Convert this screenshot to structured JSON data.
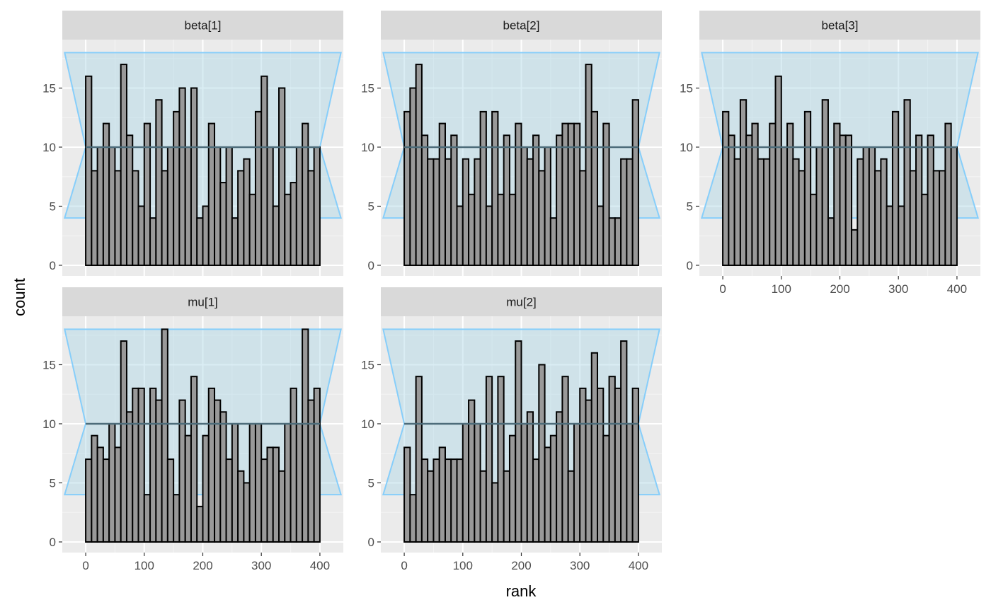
{
  "chart_data": {
    "type": "bar",
    "subtype": "rank-histogram",
    "xlabel": "rank",
    "ylabel": "count",
    "xlim": [
      -40,
      440
    ],
    "ylim": [
      0,
      18
    ],
    "x_ticks": [
      0,
      100,
      200,
      300,
      400
    ],
    "y_ticks": [
      0,
      5,
      10,
      15
    ],
    "bin_width": 10,
    "bin_starts": [
      0,
      10,
      20,
      30,
      40,
      50,
      60,
      70,
      80,
      90,
      100,
      110,
      120,
      130,
      140,
      150,
      160,
      170,
      180,
      190,
      200,
      210,
      220,
      230,
      240,
      250,
      260,
      270,
      280,
      290,
      300,
      310,
      320,
      330,
      340,
      350,
      360,
      370,
      380,
      390
    ],
    "expected_count": 10,
    "band": {
      "low": 4,
      "high": 18
    },
    "colors": {
      "bar_fill": "#999999",
      "bar_outline": "#000000",
      "band_fill": "#add8e6",
      "band_line": "#87cefa",
      "mean_line": "#4d6c7a",
      "panel_bg": "#ebebeb",
      "strip_bg": "#d9d9d9"
    },
    "panels": [
      {
        "title": "beta[1]",
        "counts": [
          16,
          8,
          10,
          12,
          10,
          8,
          17,
          11,
          8,
          5,
          12,
          4,
          14,
          8,
          10,
          13,
          15,
          10,
          15,
          4,
          5,
          12,
          10,
          7,
          10,
          4,
          8,
          9,
          6,
          13,
          16,
          10,
          5,
          15,
          6,
          7,
          10,
          12,
          8,
          10
        ]
      },
      {
        "title": "beta[2]",
        "counts": [
          13,
          15,
          17,
          11,
          9,
          9,
          12,
          9,
          11,
          5,
          9,
          6,
          9,
          13,
          5,
          13,
          6,
          11,
          6,
          12,
          10,
          9,
          11,
          8,
          10,
          4,
          11,
          12,
          12,
          12,
          8,
          17,
          13,
          5,
          12,
          4,
          4,
          9,
          9,
          14
        ]
      },
      {
        "title": "beta[3]",
        "counts": [
          13,
          11,
          9,
          14,
          11,
          12,
          9,
          9,
          12,
          16,
          10,
          12,
          9,
          8,
          13,
          6,
          10,
          14,
          4,
          12,
          11,
          11,
          3,
          9,
          10,
          10,
          8,
          9,
          5,
          13,
          5,
          14,
          8,
          11,
          6,
          11,
          8,
          8,
          12,
          10
        ]
      },
      {
        "title": "mu[1]",
        "counts": [
          7,
          9,
          8,
          7,
          10,
          8,
          17,
          11,
          13,
          13,
          4,
          13,
          12,
          18,
          7,
          4,
          12,
          9,
          14,
          3,
          9,
          13,
          12,
          11,
          7,
          10,
          6,
          5,
          10,
          10,
          7,
          8,
          8,
          6,
          10,
          13,
          10,
          18,
          12,
          13
        ]
      },
      {
        "title": "mu[2]",
        "counts": [
          8,
          4,
          14,
          7,
          6,
          7,
          8,
          7,
          7,
          7,
          10,
          12,
          10,
          6,
          14,
          5,
          14,
          6,
          9,
          17,
          10,
          11,
          7,
          15,
          8,
          9,
          11,
          14,
          6,
          10,
          13,
          12,
          16,
          13,
          9,
          14,
          13,
          17,
          10,
          13
        ]
      }
    ]
  }
}
